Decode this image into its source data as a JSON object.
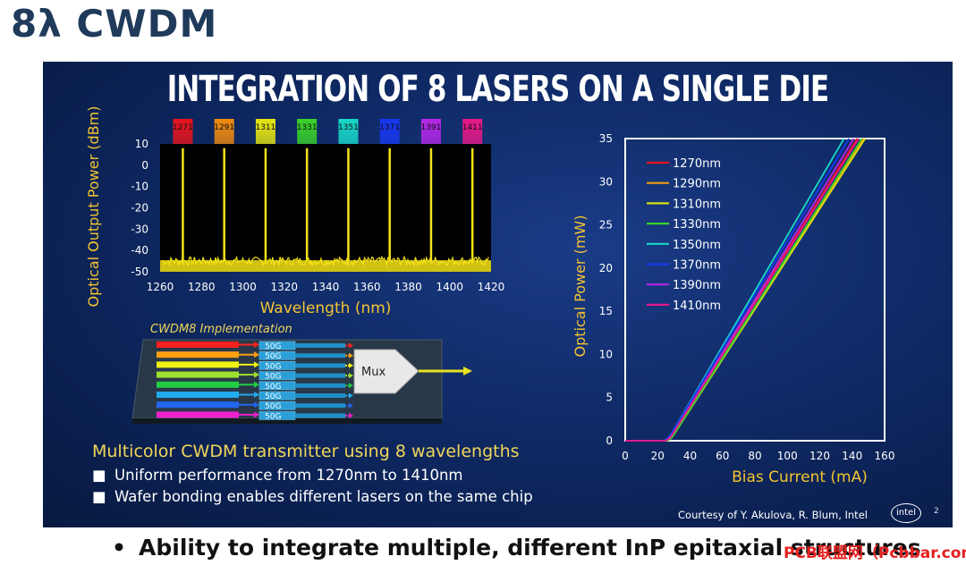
{
  "heading": "8λ CWDM",
  "slide": {
    "title": "INTEGRATION OF 8 LASERS ON A SINGLE DIE",
    "lead": "Multicolor CWDM transmitter using 8 wavelengths",
    "bullets": [
      "Uniform performance from 1270nm to 1410nm",
      "Wafer bonding enables different lasers on the same chip"
    ],
    "credit": "Courtesy of Y. Akulova, R. Blum, Intel",
    "logo_text": "intel",
    "page_number": "2"
  },
  "footer": "Ability to integrate multiple, different InP epitaxial structures",
  "watermark": "PCB联盟网（Pcbbar.com）",
  "chart_data": [
    {
      "type": "line",
      "xlabel": "Wavelength (nm)",
      "ylabel": "Optical Output Power (dBm)",
      "xlim": [
        1260,
        1420
      ],
      "ylim": [
        -50,
        10
      ],
      "x_ticks": [
        "1260",
        "1280",
        "1300",
        "1320",
        "1340",
        "1360",
        "1380",
        "1400",
        "1420"
      ],
      "y_ticks": [
        "10",
        "0",
        "-10",
        "-20",
        "-30",
        "-40",
        "-50"
      ],
      "peak_labels": [
        "1271",
        "1291",
        "1311",
        "1331",
        "1351",
        "1371",
        "1391",
        "1411"
      ],
      "peak_colors": [
        "#e8141e",
        "#f08a10",
        "#e6e610",
        "#3ad22a",
        "#18d8c8",
        "#1838f0",
        "#b428e8",
        "#e81888"
      ],
      "line_color": "#f4e316",
      "peaks": [
        {
          "x": 1271,
          "y": 8
        },
        {
          "x": 1291,
          "y": 8
        },
        {
          "x": 1311,
          "y": 8
        },
        {
          "x": 1331,
          "y": 8
        },
        {
          "x": 1351,
          "y": 8
        },
        {
          "x": 1371,
          "y": 8
        },
        {
          "x": 1391,
          "y": 8
        },
        {
          "x": 1411,
          "y": 8
        }
      ],
      "noise_floor": -45,
      "grid": false
    },
    {
      "type": "line",
      "xlabel": "Bias Current (mA)",
      "ylabel": "Optical Power (mW)",
      "xlim": [
        0,
        160
      ],
      "ylim": [
        0,
        35
      ],
      "x_ticks": [
        "0",
        "20",
        "40",
        "60",
        "80",
        "100",
        "120",
        "140",
        "160"
      ],
      "y_ticks": [
        "35",
        "30",
        "25",
        "20",
        "15",
        "10",
        "5",
        "0"
      ],
      "grid": false,
      "legend": "top-left",
      "series": [
        {
          "name": "1270nm",
          "color": "#e8141e",
          "threshold": 24,
          "x_at_max": 143
        },
        {
          "name": "1290nm",
          "color": "#f09a10",
          "threshold": 25,
          "x_at_max": 147
        },
        {
          "name": "1310nm",
          "color": "#d8e010",
          "threshold": 25,
          "x_at_max": 148
        },
        {
          "name": "1330nm",
          "color": "#3ad22a",
          "threshold": 25,
          "x_at_max": 146
        },
        {
          "name": "1350nm",
          "color": "#18d8c8",
          "threshold": 23,
          "x_at_max": 135
        },
        {
          "name": "1370nm",
          "color": "#1838f0",
          "threshold": 23,
          "x_at_max": 138
        },
        {
          "name": "1390nm",
          "color": "#b428e8",
          "threshold": 24,
          "x_at_max": 141
        },
        {
          "name": "1410nm",
          "color": "#e81888",
          "threshold": 24,
          "x_at_max": 144
        }
      ]
    }
  ],
  "diagram": {
    "title": "CWDM8 Implementation",
    "channel_label": "50G",
    "channel_count": 8,
    "mux_label": "Mux",
    "lane_colors": [
      "#ff2020",
      "#ffa010",
      "#f2f212",
      "#9ee030",
      "#22cc44",
      "#22aaee",
      "#2266ee",
      "#ee22cc"
    ]
  }
}
